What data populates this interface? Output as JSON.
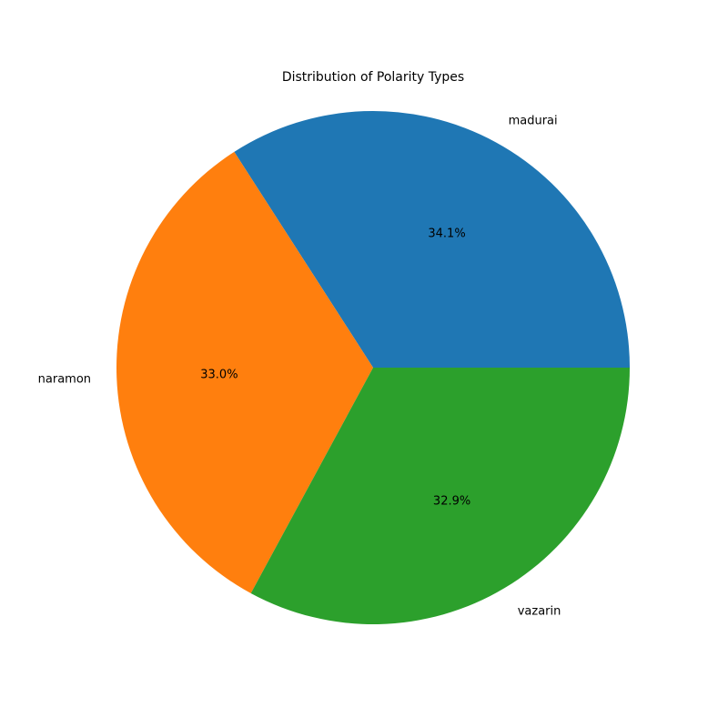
{
  "chart_data": {
    "type": "pie",
    "title": "Distribution of Polarity Types",
    "slices": [
      {
        "label": "madurai",
        "value": 34.1,
        "pct_label": "34.1%",
        "color": "#1f77b4"
      },
      {
        "label": "naramon",
        "value": 33.0,
        "pct_label": "33.0%",
        "color": "#ff7f0e"
      },
      {
        "label": "vazarin",
        "value": 32.9,
        "pct_label": "32.9%",
        "color": "#2ca02c"
      }
    ],
    "start_angle_deg": 0,
    "direction": "counterclockwise",
    "legend": "none"
  }
}
